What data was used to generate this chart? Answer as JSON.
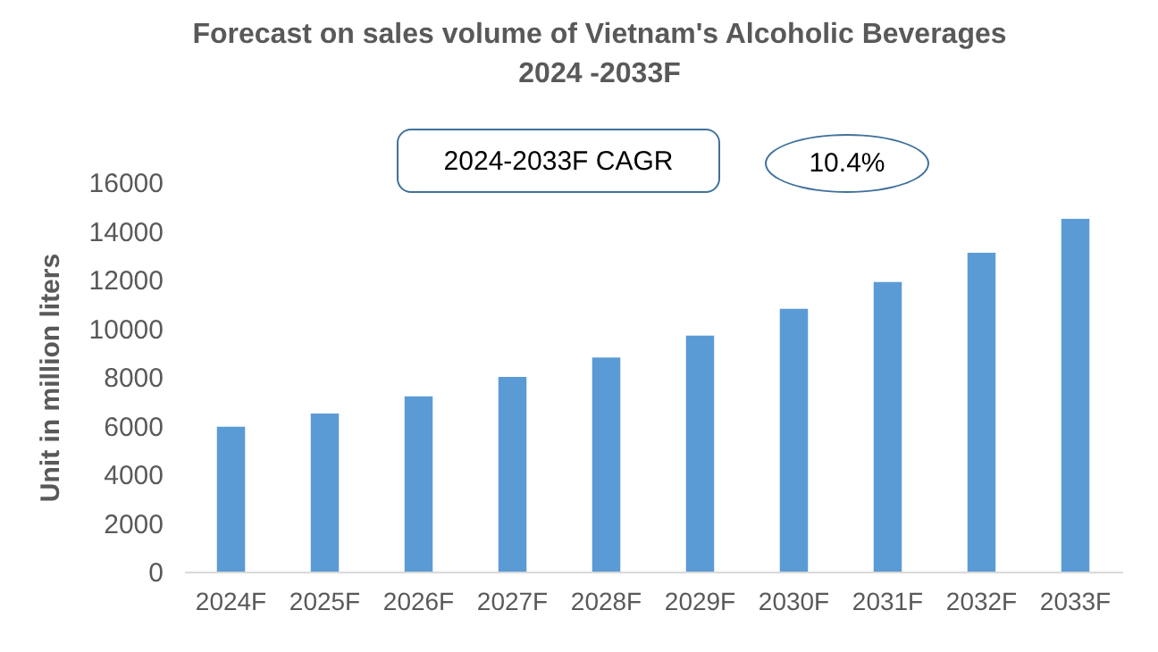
{
  "chart_data": {
    "type": "bar",
    "title": "Forecast on sales volume of Vietnam's Alcoholic Beverages 2024 -2033F",
    "ylabel": "Unit in million liters",
    "categories": [
      "2024F",
      "2025F",
      "2026F",
      "2027F",
      "2028F",
      "2029F",
      "2030F",
      "2031F",
      "2032F",
      "2033F"
    ],
    "values": [
      5950,
      6500,
      7200,
      8000,
      8800,
      9700,
      10800,
      11900,
      13100,
      14500
    ],
    "color": "#5b9bd5",
    "ylim": [
      0,
      16000
    ],
    "yticks": [
      0,
      2000,
      4000,
      6000,
      8000,
      10000,
      12000,
      14000,
      16000
    ],
    "grid": false,
    "annotations": [
      "2024-2033F CAGR",
      "10.4%"
    ]
  }
}
